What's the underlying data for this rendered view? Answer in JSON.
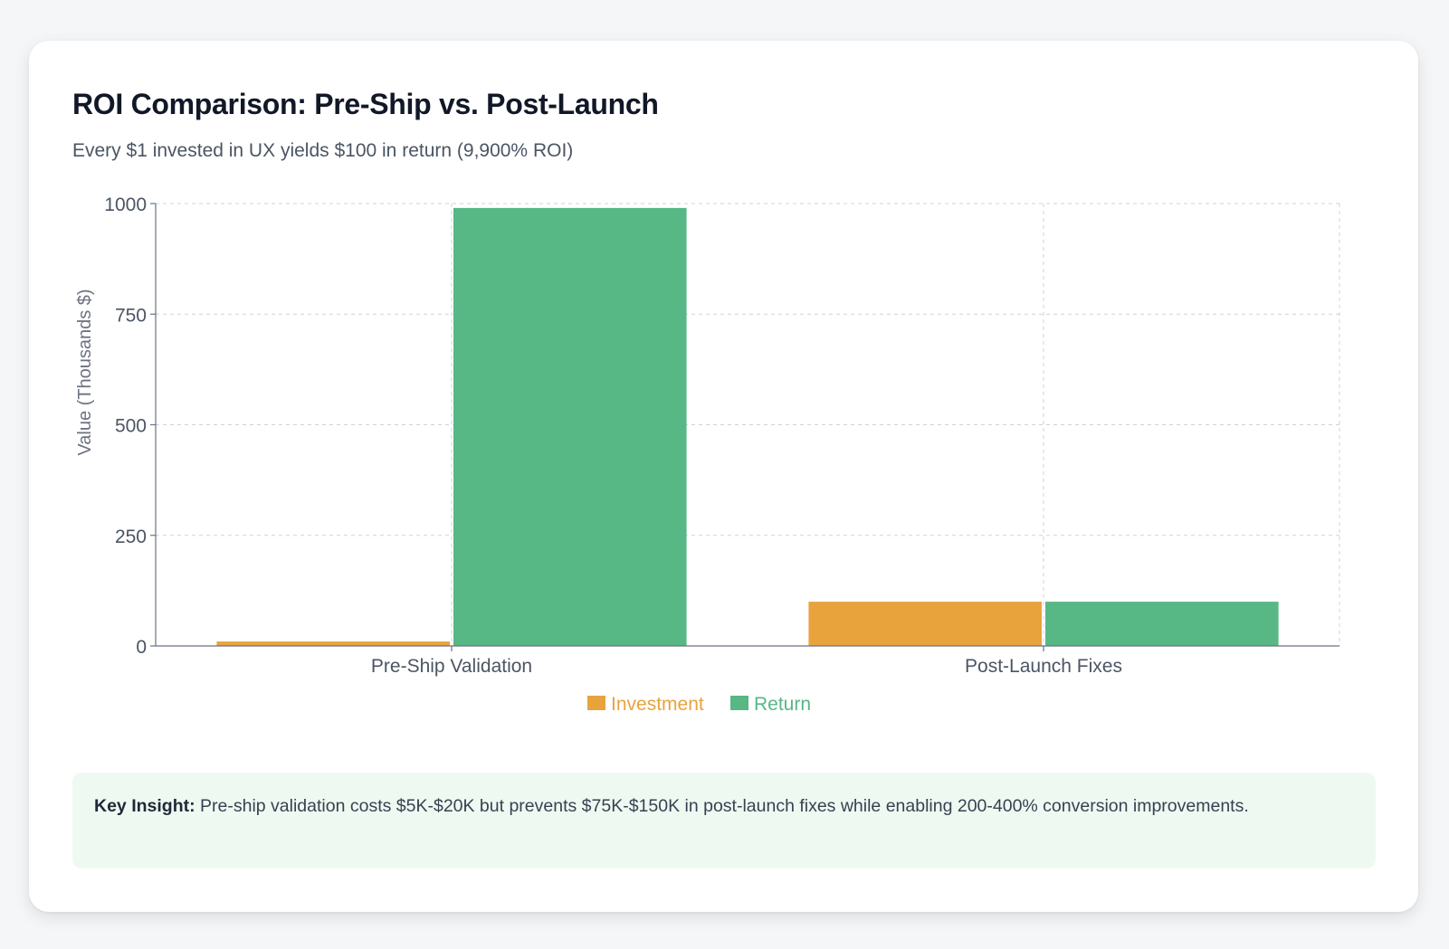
{
  "title": "ROI Comparison: Pre-Ship vs. Post-Launch",
  "subtitle": "Every $1 invested in UX yields $100 in return (9,900% ROI)",
  "insight": {
    "label": "Key Insight:",
    "text": " Pre-ship validation costs $5K-$20K but prevents $75K-$150K in post-launch fixes while enabling 200-400% conversion improvements."
  },
  "colors": {
    "investment": "#e8a33d",
    "return": "#57b785"
  },
  "chart_data": {
    "type": "bar",
    "title": "ROI Comparison: Pre-Ship vs. Post-Launch",
    "xlabel": "",
    "ylabel": "Value (Thousands $)",
    "categories": [
      "Pre-Ship Validation",
      "Post-Launch Fixes"
    ],
    "series": [
      {
        "name": "Investment",
        "values": [
          10,
          100
        ]
      },
      {
        "name": "Return",
        "values": [
          990,
          100
        ]
      }
    ],
    "ylim": [
      0,
      1000
    ],
    "yticks": [
      0,
      250,
      500,
      750,
      1000
    ],
    "grid": true,
    "legend": "bottom-center"
  }
}
